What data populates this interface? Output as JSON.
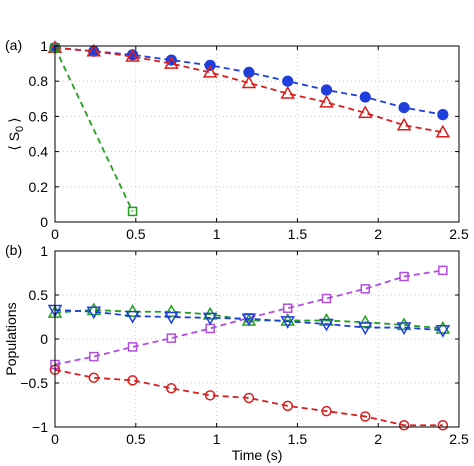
{
  "chart_data": [
    {
      "type": "line",
      "panel_label": "(a)",
      "xlabel": "",
      "ylabel": "⟨ S",
      "ylabel_sub": "0",
      "ylabel_close": "⟩",
      "xlim": [
        0,
        2.5
      ],
      "ylim": [
        0,
        1
      ],
      "xticks": [
        0,
        0.5,
        1,
        1.5,
        2,
        2.5
      ],
      "xtick_labels": [
        "0",
        "0.5",
        "1",
        "1.5",
        "2",
        "2.5"
      ],
      "yticks": [
        0,
        0.2,
        0.4,
        0.6,
        0.8,
        1
      ],
      "ytick_labels": [
        "0",
        "0.2",
        "0.4",
        "0.6",
        "0.8",
        "1"
      ],
      "grid": true,
      "series": [
        {
          "color": "#1f3fdc",
          "marker": "circle-filled",
          "x": [
            0,
            0.24,
            0.48,
            0.72,
            0.96,
            1.2,
            1.44,
            1.68,
            1.92,
            2.16,
            2.4
          ],
          "y": [
            0.99,
            0.97,
            0.95,
            0.92,
            0.89,
            0.85,
            0.8,
            0.75,
            0.71,
            0.65,
            0.61
          ]
        },
        {
          "color": "#d81f1f",
          "marker": "triangle-up",
          "x": [
            0,
            0.24,
            0.48,
            0.72,
            0.96,
            1.2,
            1.44,
            1.68,
            1.92,
            2.16,
            2.4
          ],
          "y": [
            0.99,
            0.97,
            0.94,
            0.9,
            0.85,
            0.79,
            0.73,
            0.68,
            0.62,
            0.55,
            0.51
          ]
        },
        {
          "color": "#22a01e",
          "marker": "square",
          "x": [
            0,
            0.48
          ],
          "y": [
            0.99,
            0.06
          ]
        }
      ]
    },
    {
      "type": "line",
      "panel_label": "(b)",
      "xlabel": "Time (s)",
      "ylabel": "Populations",
      "xlim": [
        0,
        2.5
      ],
      "ylim": [
        -1,
        1
      ],
      "xticks": [
        0,
        0.5,
        1,
        1.5,
        2,
        2.5
      ],
      "xtick_labels": [
        "0",
        "0.5",
        "1",
        "1.5",
        "2",
        "2.5"
      ],
      "yticks": [
        -1,
        -0.5,
        0,
        0.5,
        1
      ],
      "ytick_labels": [
        "−1",
        "−0.5",
        "0",
        "0.5",
        "1"
      ],
      "grid": true,
      "series": [
        {
          "color": "#b14de0",
          "marker": "square",
          "x": [
            0,
            0.24,
            0.48,
            0.72,
            0.96,
            1.2,
            1.44,
            1.68,
            1.92,
            2.16,
            2.4
          ],
          "y": [
            -0.29,
            -0.2,
            -0.09,
            0.01,
            0.12,
            0.24,
            0.35,
            0.46,
            0.57,
            0.71,
            0.78
          ]
        },
        {
          "color": "#d81f1f",
          "marker": "circle-open",
          "x": [
            0,
            0.24,
            0.48,
            0.72,
            0.96,
            1.2,
            1.44,
            1.68,
            1.92,
            2.16,
            2.4
          ],
          "y": [
            -0.35,
            -0.44,
            -0.47,
            -0.56,
            -0.64,
            -0.67,
            -0.76,
            -0.82,
            -0.88,
            -0.98,
            -0.98
          ]
        },
        {
          "color": "#22a01e",
          "marker": "triangle-up",
          "x": [
            0,
            0.24,
            0.48,
            0.72,
            0.96,
            1.2,
            1.44,
            1.68,
            1.92,
            2.16,
            2.4
          ],
          "y": [
            0.3,
            0.33,
            0.31,
            0.31,
            0.28,
            0.21,
            0.21,
            0.21,
            0.19,
            0.16,
            0.12
          ]
        },
        {
          "color": "#1f3fdc",
          "marker": "triangle-down",
          "x": [
            0,
            0.24,
            0.48,
            0.72,
            0.96,
            1.2,
            1.44,
            1.68,
            1.92,
            2.16,
            2.4
          ],
          "y": [
            0.33,
            0.31,
            0.26,
            0.25,
            0.24,
            0.23,
            0.2,
            0.17,
            0.13,
            0.13,
            0.1
          ]
        }
      ]
    }
  ]
}
